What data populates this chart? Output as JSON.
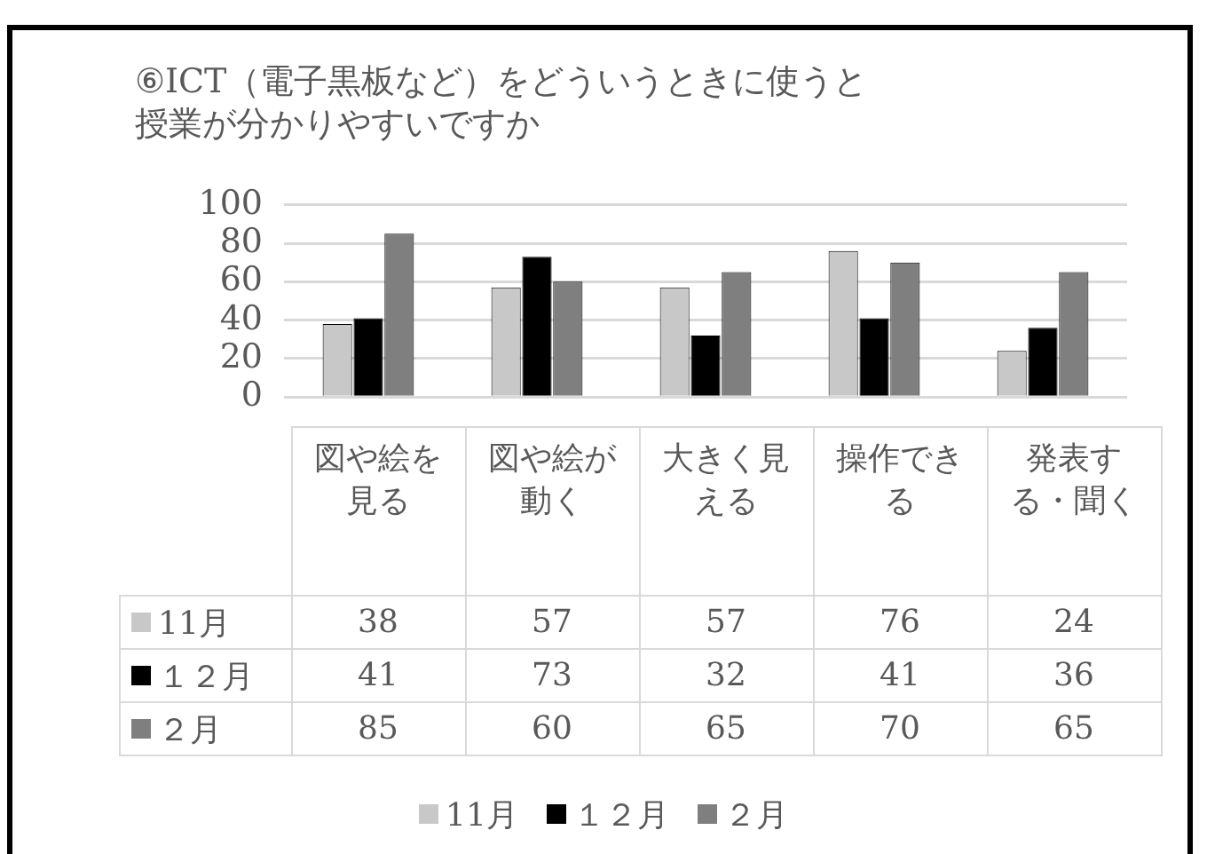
{
  "chart_data": {
    "type": "bar",
    "title": "⑥ICT（電子黒板など）をどういうときに使うと授業が分かりやすいですか",
    "categories": [
      "図や絵を見る",
      "図や絵が動く",
      "大きく見える",
      "操作できる",
      "発表する・聞く"
    ],
    "series": [
      {
        "name": "11月",
        "color": "#c8c8c8",
        "values": [
          38,
          57,
          57,
          76,
          24
        ]
      },
      {
        "name": "１２月",
        "color": "#000000",
        "values": [
          41,
          73,
          32,
          41,
          36
        ]
      },
      {
        "name": "２月",
        "color": "#7f7f7f",
        "values": [
          85,
          60,
          65,
          70,
          65
        ]
      }
    ],
    "ylim": [
      0,
      100
    ],
    "yticks": [
      0,
      20,
      40,
      60,
      80,
      100
    ],
    "grid": "y",
    "legend": "bottom",
    "data_labels": true
  }
}
